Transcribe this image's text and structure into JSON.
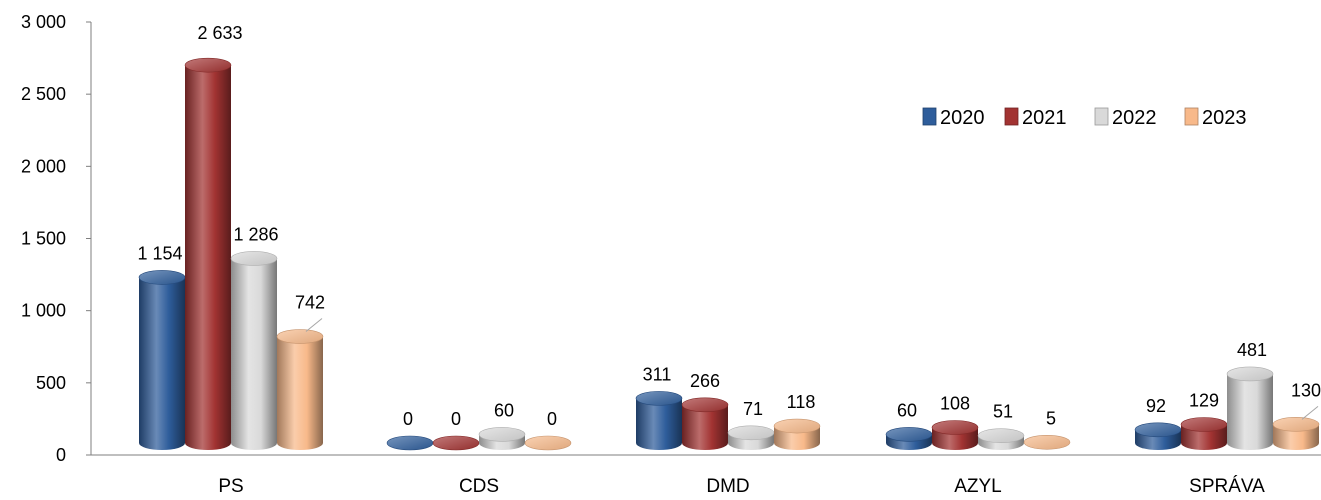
{
  "chart_data": {
    "type": "bar",
    "title": "",
    "xlabel": "",
    "ylabel": "",
    "categories": [
      "PS",
      "CDS",
      "DMD",
      "AZYL",
      "SPRÁVA"
    ],
    "series": [
      {
        "name": "2020",
        "values": [
          1154,
          0,
          311,
          60,
          92
        ],
        "color": "#2E5D9B"
      },
      {
        "name": "2021",
        "values": [
          2633,
          0,
          266,
          108,
          129
        ],
        "color": "#A23332"
      },
      {
        "name": "2022",
        "values": [
          1286,
          60,
          71,
          51,
          481
        ],
        "color": "#D9D9D9"
      },
      {
        "name": "2023",
        "values": [
          742,
          0,
          118,
          5,
          130
        ],
        "color": "#F8B98A"
      }
    ],
    "data_labels": [
      [
        "1 154",
        "2 633",
        "1 286",
        "742"
      ],
      [
        "0",
        "0",
        "60",
        "0"
      ],
      [
        "311",
        "266",
        "71",
        "118"
      ],
      [
        "60",
        "108",
        "51",
        "5"
      ],
      [
        "92",
        "129",
        "481",
        "130"
      ]
    ],
    "ylim": [
      0,
      3000
    ],
    "yticks": [
      0,
      500,
      1000,
      1500,
      2000,
      2500,
      3000
    ],
    "ytick_labels": [
      "0",
      "500",
      "1 000",
      "1 500",
      "2 000",
      "2 500",
      "3 000"
    ],
    "grid": false,
    "legend_position": "top-right",
    "style": "3d-cylinder"
  }
}
